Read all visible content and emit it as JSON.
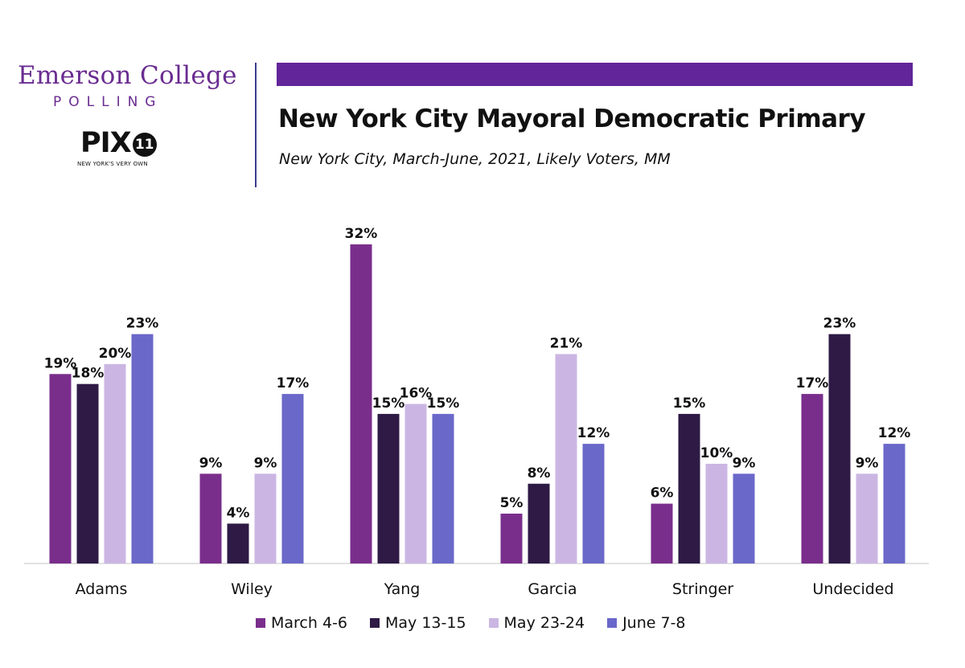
{
  "branding": {
    "emerson": "Emerson College",
    "polling": "POLLING",
    "pix": "PIX",
    "pix_number": "11",
    "pix_tagline": "NEW YORK'S VERY OWN"
  },
  "colors": {
    "title_bar": "#62259a",
    "series": [
      "#7a2e8c",
      "#2e1a45",
      "#cbb6e3",
      "#6a68c9"
    ]
  },
  "chart_data": {
    "type": "bar",
    "title": "New York City Mayoral Democratic Primary",
    "subtitle": "New York City, March-June, 2021, Likely Voters, MM",
    "categories": [
      "Adams",
      "Wiley",
      "Yang",
      "Garcia",
      "Stringer",
      "Undecided"
    ],
    "series": [
      {
        "name": "March 4-6",
        "values": [
          19,
          9,
          32,
          5,
          6,
          17
        ]
      },
      {
        "name": "May 13-15",
        "values": [
          18,
          4,
          15,
          8,
          15,
          23
        ]
      },
      {
        "name": "May 23-24",
        "values": [
          20,
          9,
          16,
          21,
          10,
          9
        ]
      },
      {
        "name": "June 7-8",
        "values": [
          23,
          17,
          15,
          12,
          9,
          12
        ]
      }
    ],
    "labels": [
      [
        "19%",
        "9%",
        "32%",
        "5%",
        "6%",
        "17%"
      ],
      [
        "18%",
        "4%",
        "15%",
        "8%",
        "15%",
        "23%"
      ],
      [
        "20%",
        "9%",
        "16%",
        "21%",
        "10%",
        "9%"
      ],
      [
        "23%",
        "17%",
        "15%",
        "12%",
        "9%",
        "12%"
      ]
    ],
    "ylim": [
      0,
      32
    ],
    "grid": false,
    "legend_position": "bottom"
  }
}
